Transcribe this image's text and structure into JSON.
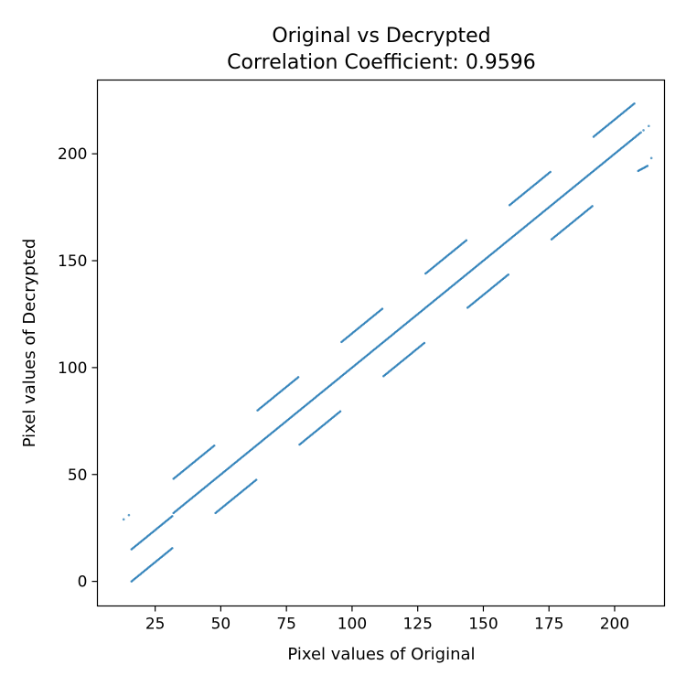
{
  "chart_data": {
    "type": "scatter",
    "title": "Original vs Decrypted",
    "subtitle": "Correlation Coefficient: 0.9596",
    "xlabel": "Pixel values of Original",
    "ylabel": "Pixel values of Decrypted",
    "xlim": [
      3,
      219
    ],
    "ylim": [
      -11.5,
      234.5
    ],
    "xticks": [
      25,
      50,
      75,
      100,
      125,
      150,
      175,
      200
    ],
    "yticks": [
      0,
      50,
      100,
      150,
      200
    ],
    "grid": false,
    "series": [
      {
        "color": "#1f77b4",
        "segments": [
          {
            "x": [
              16,
              31
            ],
            "y": [
              15,
              30
            ]
          },
          {
            "x": [
              16,
              31
            ],
            "y": [
              0,
              15
            ]
          },
          {
            "x": [
              32,
              47
            ],
            "y": [
              48,
              63
            ]
          },
          {
            "x": [
              32,
              47
            ],
            "y": [
              32,
              47
            ]
          },
          {
            "x": [
              48,
              63
            ],
            "y": [
              32,
              47
            ]
          },
          {
            "x": [
              48,
              63
            ],
            "y": [
              48,
              63
            ]
          },
          {
            "x": [
              64,
              79
            ],
            "y": [
              80,
              95
            ]
          },
          {
            "x": [
              64,
              79
            ],
            "y": [
              64,
              79
            ]
          },
          {
            "x": [
              80,
              95
            ],
            "y": [
              64,
              79
            ]
          },
          {
            "x": [
              80,
              95
            ],
            "y": [
              80,
              95
            ]
          },
          {
            "x": [
              96,
              111
            ],
            "y": [
              112,
              127
            ]
          },
          {
            "x": [
              96,
              111
            ],
            "y": [
              96,
              111
            ]
          },
          {
            "x": [
              112,
              127
            ],
            "y": [
              96,
              111
            ]
          },
          {
            "x": [
              112,
              127
            ],
            "y": [
              112,
              127
            ]
          },
          {
            "x": [
              128,
              143
            ],
            "y": [
              144,
              159
            ]
          },
          {
            "x": [
              128,
              143
            ],
            "y": [
              128,
              143
            ]
          },
          {
            "x": [
              144,
              159
            ],
            "y": [
              128,
              143
            ]
          },
          {
            "x": [
              144,
              159
            ],
            "y": [
              144,
              159
            ]
          },
          {
            "x": [
              160,
              175
            ],
            "y": [
              176,
              191
            ]
          },
          {
            "x": [
              160,
              175
            ],
            "y": [
              160,
              175
            ]
          },
          {
            "x": [
              176,
              191
            ],
            "y": [
              160,
              175
            ]
          },
          {
            "x": [
              176,
              191
            ],
            "y": [
              176,
              191
            ]
          },
          {
            "x": [
              192,
              207
            ],
            "y": [
              208,
              223
            ]
          },
          {
            "x": [
              192,
              209
            ],
            "y": [
              192,
              209
            ]
          },
          {
            "x": [
              209,
              212
            ],
            "y": [
              192,
              194
            ]
          }
        ],
        "points": [
          {
            "x": 13,
            "y": 29
          },
          {
            "x": 15,
            "y": 31
          },
          {
            "x": 210,
            "y": 210
          },
          {
            "x": 211,
            "y": 211
          },
          {
            "x": 213,
            "y": 213
          },
          {
            "x": 214,
            "y": 198
          }
        ]
      }
    ]
  }
}
